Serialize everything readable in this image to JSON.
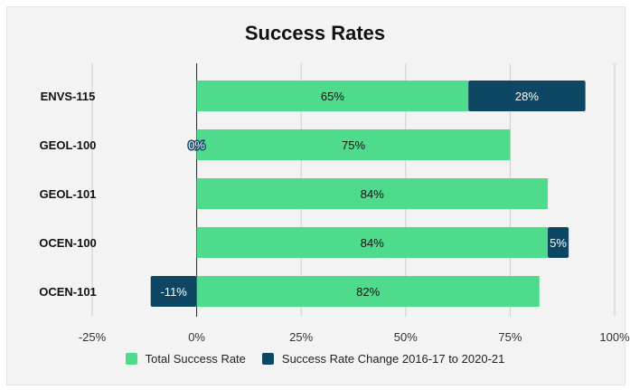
{
  "chart_data": {
    "type": "bar",
    "orientation": "horizontal",
    "stacked": true,
    "title": "Success Rates",
    "categories": [
      "ENVS-115",
      "GEOL-100",
      "GEOL-101",
      "OCEN-100",
      "OCEN-101"
    ],
    "series": [
      {
        "name": "Total Success Rate",
        "color": "#4edb8c",
        "values": [
          65,
          75,
          84,
          84,
          82
        ],
        "labels": [
          "65%",
          "75%",
          "84%",
          "84%",
          "82%"
        ]
      },
      {
        "name": "Success Rate Change 2016-17 to 2020-21",
        "color": "#0d4763",
        "values": [
          28,
          0,
          0,
          5,
          -11
        ],
        "labels": [
          "28%",
          "0%",
          "",
          "5%",
          "-11%"
        ]
      }
    ],
    "xlim": [
      -25,
      100
    ],
    "xticks": [
      -25,
      0,
      25,
      50,
      75,
      100
    ],
    "xtick_labels": [
      "-25%",
      "0%",
      "25%",
      "50%",
      "75%",
      "100%"
    ],
    "grid": true,
    "legend_position": "bottom"
  }
}
